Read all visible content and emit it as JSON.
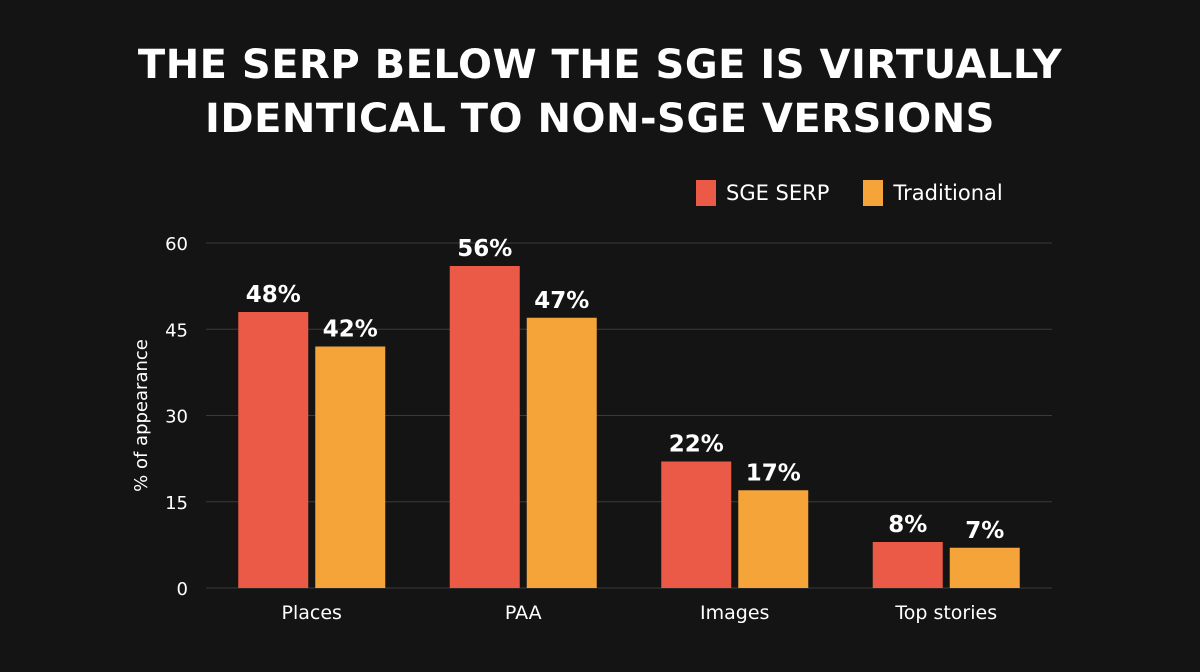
{
  "title_line1": "THE SERP BELOW THE SGE IS VIRTUALLY",
  "title_line2": "IDENTICAL TO NON-SGE VERSIONS",
  "colors": {
    "sge": "#EB5A47",
    "traditional": "#F5A43A",
    "grid": "#3a3a3a",
    "background": "#141414"
  },
  "chart_data": {
    "type": "bar",
    "title": "THE SERP BELOW THE SGE IS VIRTUALLY IDENTICAL TO NON-SGE VERSIONS",
    "xlabel": "",
    "ylabel": "% of appearance",
    "ylim": [
      0,
      60
    ],
    "yticks": [
      0,
      15,
      30,
      45,
      60
    ],
    "categories": [
      "Places",
      "PAA",
      "Images",
      "Top stories"
    ],
    "series": [
      {
        "name": "SGE SERP",
        "values": [
          48,
          56,
          22,
          8
        ],
        "labels": [
          "48%",
          "56%",
          "22%",
          "8%"
        ]
      },
      {
        "name": "Traditional",
        "values": [
          42,
          47,
          17,
          7
        ],
        "labels": [
          "42%",
          "47%",
          "17%",
          "7%"
        ]
      }
    ],
    "legend": "top-right",
    "grid": true
  }
}
